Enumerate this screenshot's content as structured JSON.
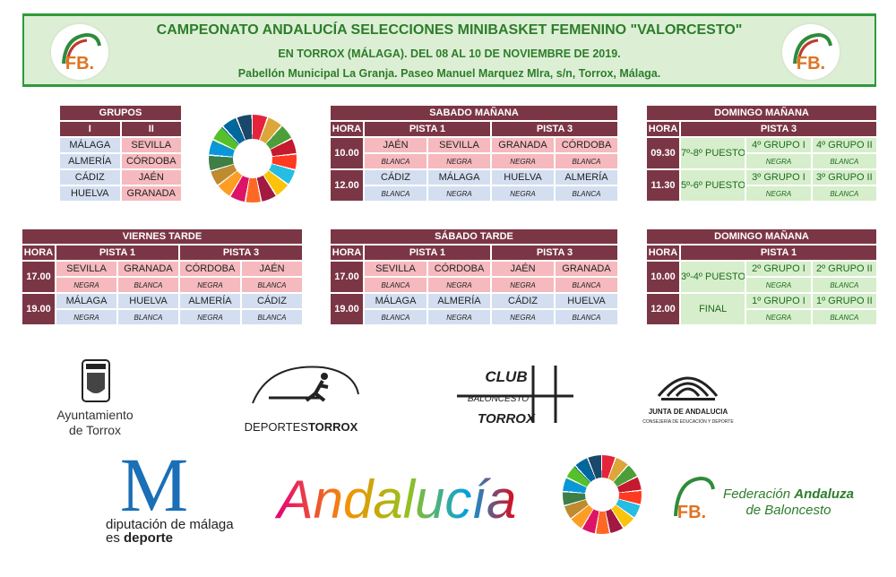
{
  "header": {
    "title": "CAMPEONATO ANDALUCÍA SELECCIONES MINIBASKET FEMENINO \"VALORCESTO\"",
    "subtitle": "EN TORROX (MÁLAGA). DEL 08 AL 10 DE NOVIEMBRE DE 2019.",
    "venue": "Pabellón Municipal La Granja. Paseo Manuel Marquez Mlra, s/n, Torrox, Málaga.",
    "logo_text": "FB."
  },
  "groups": {
    "title": "GRUPOS",
    "columns": [
      "I",
      "II"
    ],
    "rows": [
      [
        "MÁLAGA",
        "SEVILLA"
      ],
      [
        "ALMERÍA",
        "CÓRDOBA"
      ],
      [
        "CÁDIZ",
        "JAÉN"
      ],
      [
        "HUELVA",
        "GRANADA"
      ]
    ]
  },
  "schedules": [
    {
      "title": "SABADO MAÑANA",
      "hora": "HORA",
      "courts": [
        "PISTA 1",
        "PISTA 3"
      ],
      "rows": [
        {
          "time": "10.00",
          "games": [
            {
              "team": "JAÉN",
              "color": "BLANCA"
            },
            {
              "team": "SEVILLA",
              "color": "NEGRA"
            },
            {
              "team": "GRANADA",
              "color": "NEGRA"
            },
            {
              "team": "CÓRDOBA",
              "color": "BLANCA"
            }
          ]
        },
        {
          "time": "12.00",
          "games": [
            {
              "team": "CÁDIZ",
              "color": "BLANCA"
            },
            {
              "team": "MÁLAGA",
              "color": "NEGRA"
            },
            {
              "team": "HUELVA",
              "color": "NEGRA"
            },
            {
              "team": "ALMERÍA",
              "color": "BLANCA"
            }
          ]
        }
      ]
    },
    {
      "title": "DOMINGO MAÑANA",
      "hora": "HORA",
      "courts": [
        "PISTA 3"
      ],
      "rows": [
        {
          "time": "09.30",
          "place": "7º-8º PUESTO",
          "games": [
            {
              "team": "4º GRUPO I",
              "color": "NEGRA"
            },
            {
              "team": "4º GRUPO II",
              "color": "BLANCA"
            }
          ]
        },
        {
          "time": "11.30",
          "place": "5º-6º PUESTO",
          "games": [
            {
              "team": "3º GRUPO I",
              "color": "NEGRA"
            },
            {
              "team": "3º GRUPO II",
              "color": "BLANCA"
            }
          ]
        }
      ]
    },
    {
      "title": "VIERNES TARDE",
      "hora": "HORA",
      "courts": [
        "PISTA 1",
        "PISTA 3"
      ],
      "rows": [
        {
          "time": "17.00",
          "games": [
            {
              "team": "SEVILLA",
              "color": "NEGRA"
            },
            {
              "team": "GRANADA",
              "color": "BLANCA"
            },
            {
              "team": "CÓRDOBA",
              "color": "NEGRA"
            },
            {
              "team": "JAÉN",
              "color": "BLANCA"
            }
          ]
        },
        {
          "time": "19.00",
          "games": [
            {
              "team": "MÁLAGA",
              "color": "NEGRA"
            },
            {
              "team": "HUELVA",
              "color": "BLANCA"
            },
            {
              "team": "ALMERÍA",
              "color": "NEGRA"
            },
            {
              "team": "CÁDIZ",
              "color": "BLANCA"
            }
          ]
        }
      ]
    },
    {
      "title": "SÁBADO TARDE",
      "hora": "HORA",
      "courts": [
        "PISTA 1",
        "PISTA 3"
      ],
      "rows": [
        {
          "time": "17.00",
          "games": [
            {
              "team": "SEVILLA",
              "color": "BLANCA"
            },
            {
              "team": "CÓRDOBA",
              "color": "NEGRA"
            },
            {
              "team": "JAÉN",
              "color": "NEGRA"
            },
            {
              "team": "GRANADA",
              "color": "BLANCA"
            }
          ]
        },
        {
          "time": "19.00",
          "games": [
            {
              "team": "MÁLAGA",
              "color": "BLANCA"
            },
            {
              "team": "ALMERÍA",
              "color": "NEGRA"
            },
            {
              "team": "CÁDIZ",
              "color": "NEGRA"
            },
            {
              "team": "HUELVA",
              "color": "BLANCA"
            }
          ]
        }
      ]
    },
    {
      "title": "DOMINGO MAÑANA",
      "hora": "HORA",
      "courts": [
        "PISTA 1"
      ],
      "rows": [
        {
          "time": "10.00",
          "place": "3º-4º PUESTO",
          "games": [
            {
              "team": "2º GRUPO I",
              "color": "NEGRA"
            },
            {
              "team": "2º GRUPO II",
              "color": "BLANCA"
            }
          ]
        },
        {
          "time": "12.00",
          "place": "FINAL",
          "games": [
            {
              "team": "1º GRUPO I",
              "color": "NEGRA"
            },
            {
              "team": "1º GRUPO II",
              "color": "BLANCA"
            }
          ]
        }
      ]
    }
  ],
  "sponsors": {
    "ayuntamiento": [
      "Ayuntamiento",
      "de Torrox"
    ],
    "deportes": [
      "DEPORTES",
      "TORROX"
    ],
    "club": [
      "CLUB",
      "BALONCESTO",
      "TORROX"
    ],
    "junta": [
      "JUNTA DE ANDALUCIA",
      "CONSEJERÍA DE EDUCACIÓN Y DEPORTE"
    ],
    "diputacion": [
      "M",
      "diputación de málaga",
      "es",
      "deporte"
    ],
    "andalucia": "Andalucía",
    "federacion": [
      "Federación",
      "Andaluza",
      "de Baloncesto"
    ]
  }
}
